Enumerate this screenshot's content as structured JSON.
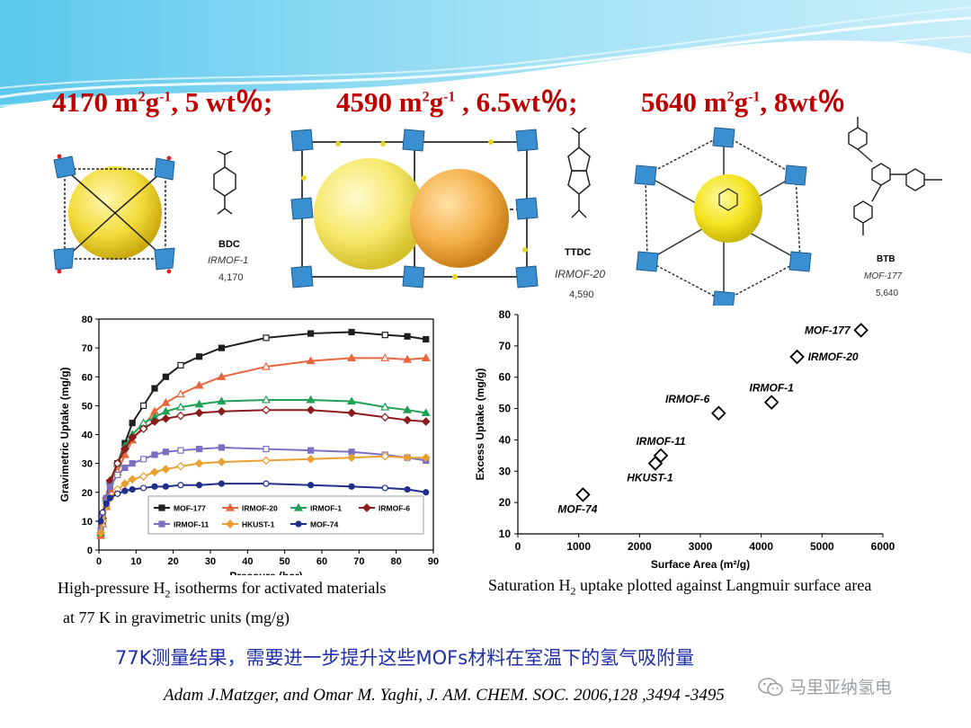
{
  "headline": {
    "segments": [
      {
        "area": "4170 m",
        "sup1": "2",
        "mid": "g",
        "sup2": "-1",
        "tail": ", 5 wt％;"
      },
      {
        "area": "4590 m",
        "sup1": "2",
        "mid": "g",
        "sup2": "-1",
        "tail": " , 6.5wt％;"
      },
      {
        "area": "5640 m",
        "sup1": "2",
        "mid": "g",
        "sup2": "-1",
        "tail": ", 8wt％"
      }
    ]
  },
  "structures": [
    {
      "linker": "BDC",
      "framework": "IRMOF-1",
      "area_label": "4,170"
    },
    {
      "linker": "TTDC",
      "framework": "IRMOF-20",
      "area_label": "4,590"
    },
    {
      "linker": "BTB",
      "framework": "MOF-177",
      "area_label": "5,640"
    }
  ],
  "colors": {
    "accent": "#c00000",
    "blue_text": "#1f2fa8",
    "banner": "#4fc3e8"
  },
  "chart_data": [
    {
      "type": "line",
      "xlabel": "Pressure (bar)",
      "ylabel": "Gravimetric Uptake (mg/g)",
      "xlim": [
        0,
        90
      ],
      "ylim": [
        0,
        80
      ],
      "xticks": [
        0,
        10,
        20,
        30,
        40,
        50,
        60,
        70,
        80,
        90
      ],
      "yticks": [
        0,
        10,
        20,
        30,
        40,
        50,
        60,
        70,
        80
      ],
      "legend": "bottom-inside",
      "series": [
        {
          "name": "MOF-177",
          "color": "#1f1f1f",
          "marker": "square",
          "x": [
            0.5,
            1,
            2,
            3,
            5,
            7,
            9,
            12,
            15,
            18,
            22,
            27,
            33,
            45,
            57,
            68,
            77,
            83,
            88
          ],
          "y": [
            5,
            10,
            17,
            23,
            30,
            37,
            44,
            50,
            56,
            60,
            64,
            67,
            70,
            73.5,
            75,
            75.5,
            74.5,
            74,
            73
          ]
        },
        {
          "name": "IRMOF-20",
          "color": "#e8663d",
          "marker": "triangle",
          "x": [
            0.5,
            1,
            2,
            3,
            5,
            7,
            9,
            12,
            15,
            18,
            22,
            27,
            33,
            45,
            57,
            68,
            77,
            83,
            88
          ],
          "y": [
            5,
            9,
            15,
            21,
            27,
            33,
            38,
            43,
            48,
            51,
            54,
            57,
            60,
            63.5,
            65.5,
            66.5,
            66.5,
            66,
            66.5
          ]
        },
        {
          "name": "IRMOF-1",
          "color": "#1fa055",
          "marker": "triangle",
          "x": [
            0.5,
            1,
            2,
            3,
            5,
            7,
            9,
            12,
            15,
            18,
            22,
            27,
            33,
            45,
            57,
            68,
            77,
            83,
            88
          ],
          "y": [
            6,
            11,
            18,
            24,
            30,
            36,
            40,
            44,
            46,
            48,
            49.5,
            50.5,
            51.5,
            52,
            52,
            51.5,
            49.5,
            48.5,
            47.5
          ]
        },
        {
          "name": "IRMOF-6",
          "color": "#8b1a1a",
          "marker": "diamond",
          "x": [
            0.5,
            1,
            2,
            3,
            5,
            7,
            9,
            12,
            15,
            18,
            22,
            27,
            33,
            45,
            57,
            68,
            77,
            83,
            88
          ],
          "y": [
            6,
            11,
            18,
            24,
            30,
            35,
            39,
            42,
            44.5,
            45.5,
            46.5,
            47.5,
            48,
            48.5,
            48.5,
            47.5,
            46,
            45,
            44.5
          ]
        },
        {
          "name": "IRMOF-11",
          "color": "#7b6fc4",
          "marker": "square",
          "x": [
            0.5,
            1,
            2,
            3,
            5,
            7,
            9,
            12,
            15,
            18,
            22,
            27,
            33,
            45,
            57,
            68,
            77,
            83,
            88
          ],
          "y": [
            7,
            12,
            18,
            22,
            26,
            28.5,
            30,
            31.5,
            33,
            34,
            34.5,
            35,
            35.5,
            35,
            34.5,
            34,
            33,
            32,
            31
          ]
        },
        {
          "name": "HKUST-1",
          "color": "#e8a030",
          "marker": "diamond",
          "x": [
            0.5,
            1,
            2,
            3,
            5,
            7,
            9,
            12,
            15,
            18,
            22,
            27,
            33,
            45,
            57,
            68,
            77,
            83,
            88
          ],
          "y": [
            6,
            10,
            15,
            18,
            21,
            23,
            24.5,
            25.5,
            27,
            28,
            29,
            30,
            30.5,
            31,
            31.5,
            32,
            32.5,
            32,
            32
          ]
        },
        {
          "name": "MOF-74",
          "color": "#1f2f8a",
          "marker": "circle",
          "x": [
            0.5,
            1,
            2,
            3,
            5,
            7,
            9,
            12,
            15,
            18,
            22,
            27,
            33,
            45,
            57,
            68,
            77,
            83,
            88
          ],
          "y": [
            10,
            13,
            16,
            18,
            19.5,
            20.5,
            21,
            21.5,
            22,
            22,
            22.5,
            22.5,
            23,
            23,
            22.5,
            22,
            21.5,
            21,
            20
          ]
        }
      ]
    },
    {
      "type": "scatter",
      "xlabel": "Surface Area (m²/g)",
      "ylabel": "Excess Uptake (mg/g)",
      "xlim": [
        0,
        6000
      ],
      "ylim": [
        10,
        80
      ],
      "xticks": [
        0,
        1000,
        2000,
        3000,
        4000,
        5000,
        6000
      ],
      "yticks": [
        10,
        20,
        30,
        40,
        50,
        60,
        70,
        80
      ],
      "points": [
        {
          "label": "MOF-177",
          "x": 5640,
          "y": 75,
          "label_pos": "left"
        },
        {
          "label": "IRMOF-20",
          "x": 4590,
          "y": 66.5,
          "label_pos": "right"
        },
        {
          "label": "IRMOF-1",
          "x": 4170,
          "y": 52,
          "label_pos": "above"
        },
        {
          "label": "IRMOF-6",
          "x": 3300,
          "y": 48.5,
          "label_pos": "above-left"
        },
        {
          "label": "IRMOF-11",
          "x": 2350,
          "y": 35,
          "label_pos": "above"
        },
        {
          "label": "HKUST-1",
          "x": 2260,
          "y": 32.5,
          "label_pos": "below"
        },
        {
          "label": "MOF-74",
          "x": 1070,
          "y": 22.5,
          "label_pos": "below"
        }
      ]
    }
  ],
  "captions": {
    "left_line1_a": "High-pressure H",
    "left_line1_sub": "2",
    "left_line1_b": " isotherms for activated materials",
    "left_line2": "at 77 K in gravimetric units (mg/g)",
    "right_a": "Saturation H",
    "right_sub": "2",
    "right_b": " uptake plotted against Langmuir surface area"
  },
  "zh_line": "77K测量结果，需要进一步提升这些MOFs材料在室温下的氢气吸附量",
  "citation": "Adam J.Matzger, and Omar M. Yaghi, J. AM. CHEM. SOC. 2006,128 ,3494 -3495",
  "watermark": {
    "icon": "wechat-icon",
    "text": "马里亚纳氢电"
  }
}
